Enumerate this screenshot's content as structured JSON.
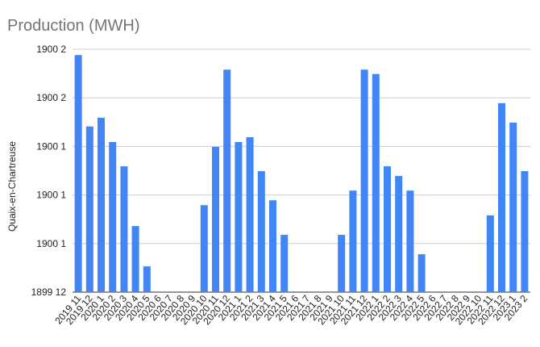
{
  "chart_data": {
    "type": "bar",
    "title": "Production (MWH)",
    "y_label": "Quaix-en-Chartreuse",
    "categories": [
      "2019 11",
      "2019 12",
      "2020 1",
      "2020 2",
      "2020 3",
      "2020 4",
      "2020 5",
      "2020 6",
      "2020 7",
      "2020 8",
      "2020 9",
      "2020 10",
      "2020 11",
      "2020 12",
      "2021 1",
      "2021 2",
      "2021 3",
      "2021 4",
      "2021 5",
      "2021 6",
      "2021 7",
      "2021 8",
      "2021 9",
      "2021 10",
      "2021 11",
      "2021 12",
      "2022 1",
      "2022 2",
      "2022 3",
      "2022 4",
      "2022 5",
      "2022 6",
      "2022 7",
      "2022 8",
      "2022 9",
      "2022 10",
      "2022 11",
      "2022 12",
      "2023 1",
      "2023 2"
    ],
    "values": [
      4.88,
      3.41,
      3.59,
      3.09,
      2.59,
      1.36,
      0.53,
      null,
      null,
      null,
      null,
      1.79,
      2.99,
      4.58,
      3.09,
      3.19,
      2.49,
      1.89,
      1.18,
      null,
      null,
      null,
      null,
      1.18,
      2.09,
      4.58,
      4.49,
      2.59,
      2.39,
      2.09,
      0.78,
      null,
      null,
      null,
      null,
      null,
      1.58,
      3.89,
      3.49,
      2.49
    ],
    "color": "#4285f4",
    "ylim": [
      0,
      5
    ],
    "yticks": [
      {
        "value": 0,
        "label": "1899 12"
      },
      {
        "value": 1,
        "label": "1900 1"
      },
      {
        "value": 2,
        "label": "1900 1"
      },
      {
        "value": 3,
        "label": "1900 1"
      },
      {
        "value": 4,
        "label": "1900 2"
      },
      {
        "value": 5,
        "label": "1900 2"
      }
    ],
    "grid": true
  }
}
